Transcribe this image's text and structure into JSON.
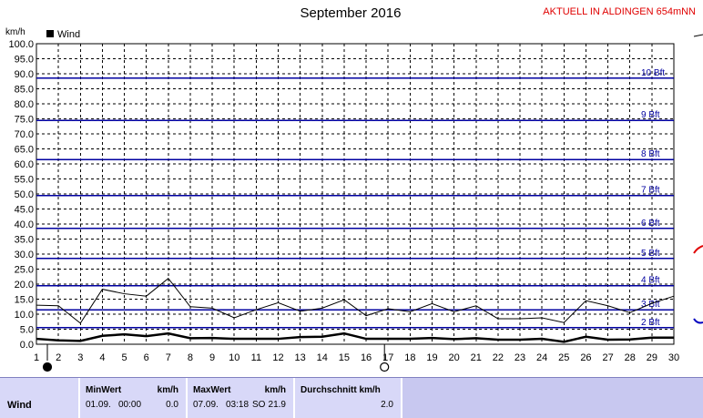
{
  "header": {
    "title": "September 2016",
    "station": "AKTUELL IN ALDINGEN 654mNN"
  },
  "chart_data": {
    "type": "line",
    "ylabel": "km/h",
    "ylim": [
      0,
      100
    ],
    "yticks": [
      "0.0",
      "5.0",
      "10.0",
      "15.0",
      "20.0",
      "25.0",
      "30.0",
      "35.0",
      "40.0",
      "45.0",
      "50.0",
      "55.0",
      "60.0",
      "65.0",
      "70.0",
      "75.0",
      "80.0",
      "85.0",
      "90.0",
      "95.0",
      "100.0"
    ],
    "xlim": [
      1,
      30
    ],
    "x": [
      1,
      2,
      3,
      4,
      5,
      6,
      7,
      8,
      9,
      10,
      11,
      12,
      13,
      14,
      15,
      16,
      17,
      18,
      19,
      20,
      21,
      22,
      23,
      24,
      25,
      26,
      27,
      28,
      29,
      30
    ],
    "legend": [
      {
        "name": "Wind",
        "color": "#000000"
      }
    ],
    "series": [
      {
        "name": "Wind",
        "role": "average",
        "values": [
          1.8,
          1.3,
          1.1,
          2.8,
          3.3,
          2.7,
          3.6,
          2.0,
          2.1,
          1.8,
          1.8,
          1.8,
          2.4,
          2.5,
          3.6,
          1.8,
          1.8,
          1.8,
          2.1,
          1.7,
          2.0,
          1.5,
          1.5,
          1.8,
          0.8,
          2.5,
          1.5,
          1.6,
          2.2,
          2.2
        ]
      },
      {
        "name": "",
        "role": "gust",
        "values": [
          13.0,
          12.8,
          7.0,
          18.3,
          16.8,
          16.0,
          21.9,
          12.5,
          12.0,
          8.8,
          11.5,
          13.8,
          11.0,
          12.0,
          14.8,
          9.5,
          11.8,
          10.8,
          13.5,
          10.8,
          12.8,
          8.5,
          8.5,
          8.8,
          7.2,
          14.5,
          12.8,
          10.5,
          13.6,
          16.0
        ]
      }
    ],
    "beaufort": [
      {
        "label": "2 Bft",
        "value": 5.5
      },
      {
        "label": "3 Bft",
        "value": 11.5
      },
      {
        "label": "4 Bft",
        "value": 19.5
      },
      {
        "label": "5 Bft",
        "value": 28.5
      },
      {
        "label": "6 Bft",
        "value": 38.5
      },
      {
        "label": "7 Bft",
        "value": 49.5
      },
      {
        "label": "8 Bft",
        "value": 61.5
      },
      {
        "label": "9 Bft",
        "value": 74.5
      },
      {
        "label": "10 Bft",
        "value": 88.5
      }
    ],
    "moon_phases": [
      {
        "day": 1,
        "phase": "new-moon"
      },
      {
        "day": 17,
        "phase": "full-moon"
      }
    ],
    "grid": true,
    "colors": {
      "beaufort_line": "#0000a0",
      "grid": "#000000",
      "avg_line": "#000000",
      "gust_line": "#000000"
    }
  },
  "stats": {
    "row_label": "Wind",
    "min": {
      "header": "MinWert",
      "unit": "km/h",
      "date": "01.09.",
      "time": "00:00",
      "value": "0.0"
    },
    "max": {
      "header": "MaxWert",
      "unit": "km/h",
      "date": "07.09.",
      "time": "03:18",
      "dir": "SO",
      "value": "21.9"
    },
    "avg": {
      "header": "Durchschnitt km/h",
      "value": "2.0"
    }
  }
}
